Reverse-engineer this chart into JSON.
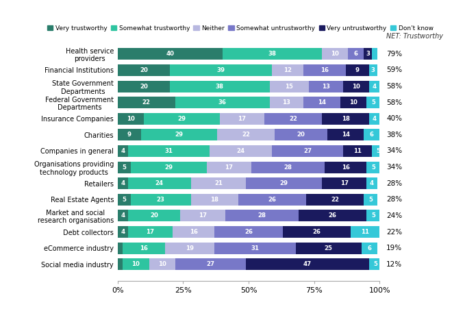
{
  "categories": [
    "Health service\nproviders",
    "Financial Institutions",
    "State Government\nDepartments",
    "Federal Government\nDepartments",
    "Insurance Companies",
    "Charities",
    "Companies in general",
    "Organisations providing\ntechnology products",
    "Retailers",
    "Real Estate Agents",
    "Market and social\nresearch organisations",
    "Debt collectors",
    "eCommerce industry",
    "Social media industry"
  ],
  "net_trustworthy": [
    "79%",
    "59%",
    "58%",
    "58%",
    "40%",
    "38%",
    "34%",
    "34%",
    "28%",
    "28%",
    "24%",
    "22%",
    "19%",
    "12%"
  ],
  "segments": {
    "Very trustworthy": [
      40,
      20,
      20,
      22,
      10,
      9,
      4,
      5,
      4,
      5,
      4,
      4,
      2,
      2
    ],
    "Somewhat trustworthy": [
      38,
      39,
      38,
      36,
      29,
      29,
      31,
      29,
      24,
      23,
      20,
      17,
      16,
      10
    ],
    "Neither": [
      10,
      12,
      15,
      13,
      17,
      22,
      24,
      17,
      21,
      18,
      17,
      16,
      19,
      10
    ],
    "Somewhat untrustworthy": [
      6,
      16,
      13,
      14,
      22,
      20,
      27,
      28,
      29,
      26,
      28,
      26,
      31,
      27
    ],
    "Very untrustworthy": [
      3,
      9,
      10,
      10,
      18,
      14,
      11,
      16,
      17,
      22,
      26,
      26,
      25,
      47
    ],
    "Don't know": [
      2,
      3,
      4,
      5,
      4,
      6,
      5,
      5,
      4,
      5,
      5,
      11,
      6,
      5
    ]
  },
  "colors": {
    "Very trustworthy": "#2a7d6b",
    "Somewhat trustworthy": "#2ec4a0",
    "Neither": "#b8b8e0",
    "Somewhat untrustworthy": "#7878c8",
    "Very untrustworthy": "#1a1a5e",
    "Don't know": "#35c8d8"
  },
  "legend_order": [
    "Very trustworthy",
    "Somewhat trustworthy",
    "Neither",
    "Somewhat untrustworthy",
    "Very untrustworthy",
    "Don't know"
  ],
  "net_label": "NET: Trustworthy",
  "xlabel_ticks": [
    "0%",
    "25%",
    "50%",
    "75%",
    "100%"
  ],
  "xlabel_vals": [
    0,
    25,
    50,
    75,
    100
  ],
  "figwidth": 6.6,
  "figheight": 4.51,
  "dpi": 100
}
